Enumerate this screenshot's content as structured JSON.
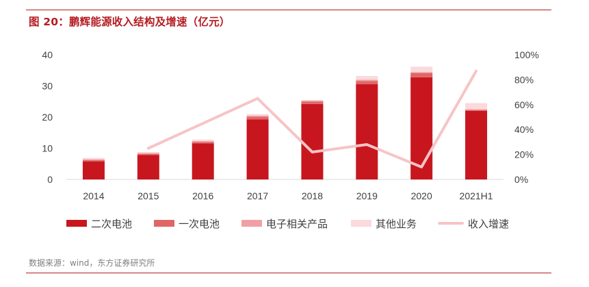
{
  "title": "图 20：鹏辉能源收入结构及增速（亿元）",
  "source": "数据来源：wind，东方证券研究所",
  "chart_data": {
    "type": "bar",
    "stacked": true,
    "categories": [
      "2014",
      "2015",
      "2016",
      "2017",
      "2018",
      "2019",
      "2020",
      "2021H1"
    ],
    "series": [
      {
        "name": "二次电池",
        "color": "#c8161e",
        "values": [
          5.8,
          7.8,
          11.6,
          19.3,
          24.2,
          30.6,
          32.8,
          22.0
        ]
      },
      {
        "name": "一次电池",
        "color": "#e06666",
        "values": [
          0.4,
          0.4,
          0.4,
          0.8,
          0.8,
          1.0,
          1.4,
          0.3
        ]
      },
      {
        "name": "电子相关产品",
        "color": "#f0a0a4",
        "values": [
          0.3,
          0.3,
          0.3,
          0.4,
          0.3,
          0.4,
          0.2,
          0.2
        ]
      },
      {
        "name": "其他业务",
        "color": "#fadadc",
        "values": [
          0.4,
          0.3,
          0.5,
          0.5,
          0.2,
          1.2,
          1.8,
          2.0
        ]
      }
    ],
    "growth": {
      "name": "收入增速",
      "color": "#f7c4c6",
      "axis": "right",
      "values": [
        null,
        25,
        null,
        65,
        22,
        28,
        10,
        87
      ]
    },
    "ylim": [
      0,
      40
    ],
    "yticks": [
      "0",
      "10",
      "20",
      "30",
      "40"
    ],
    "y2lim": [
      0,
      100
    ],
    "y2ticks": [
      "0%",
      "20%",
      "40%",
      "60%",
      "80%",
      "100%"
    ],
    "grid": false,
    "legend_position": "bottom"
  }
}
